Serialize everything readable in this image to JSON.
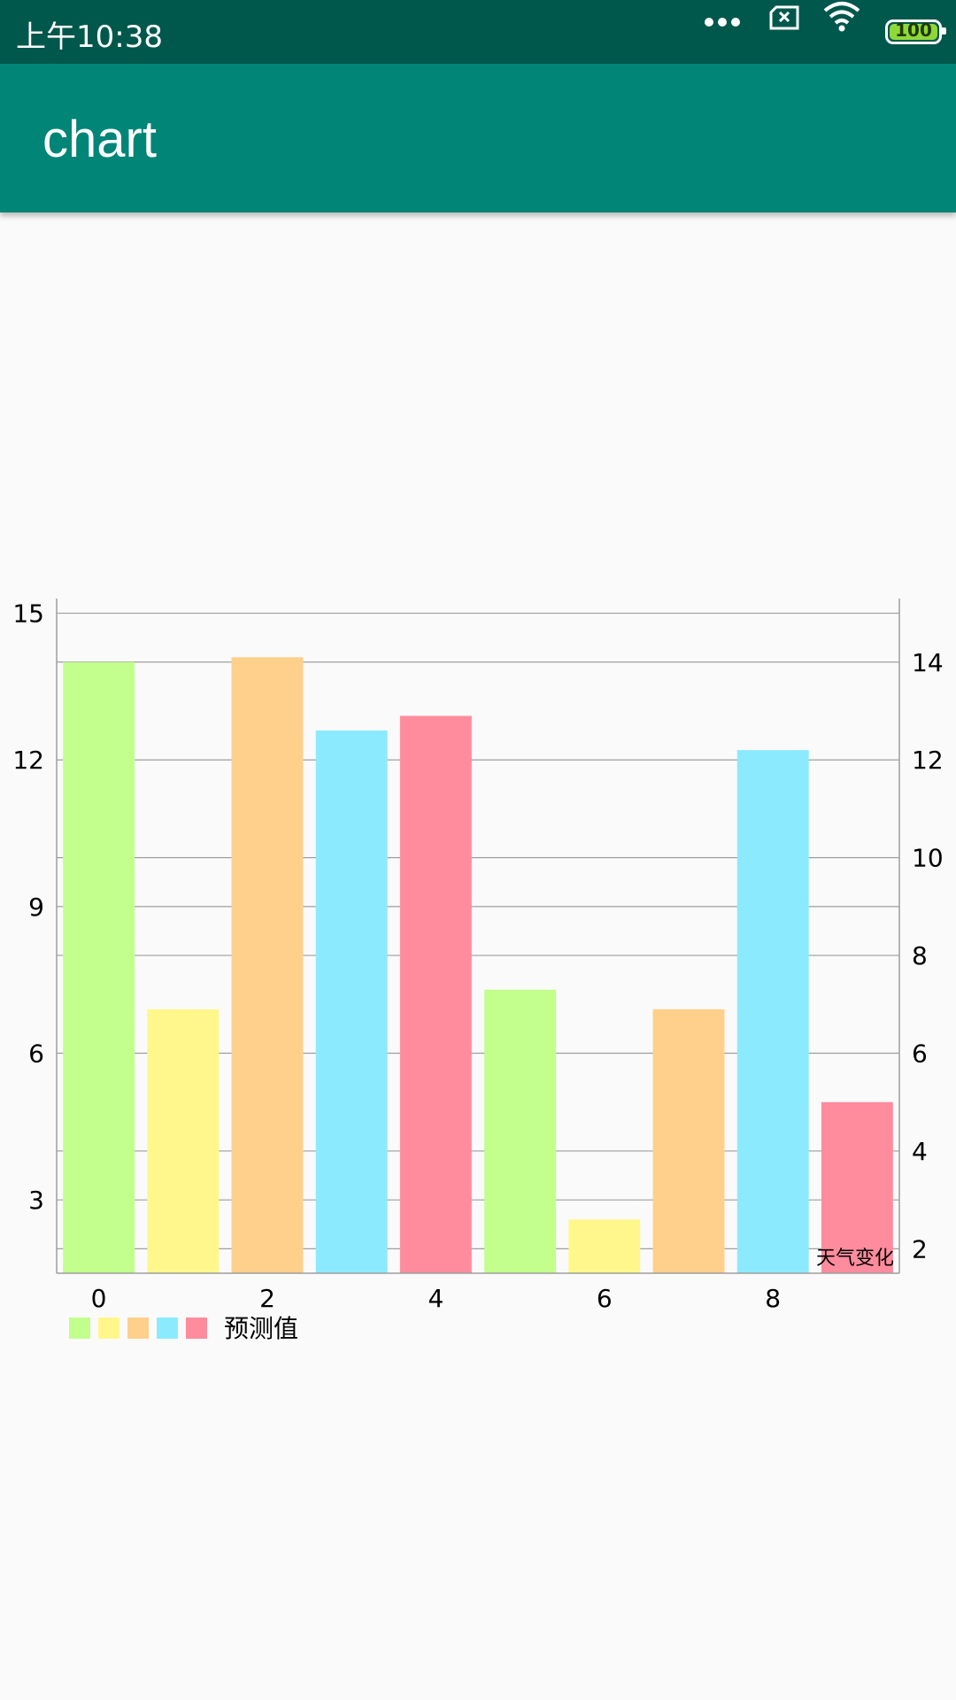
{
  "status_bar": {
    "time": "上午10:38",
    "battery_level": "100",
    "icons": [
      "more-dots-icon",
      "sim-error-icon",
      "wifi-icon",
      "battery-icon"
    ]
  },
  "app_bar": {
    "title": "chart",
    "background": "#008577"
  },
  "chart_data": {
    "type": "bar",
    "description_text": "天气变化",
    "x": [
      0,
      1,
      2,
      3,
      4,
      5,
      6,
      7,
      8,
      9
    ],
    "values": [
      14.0,
      6.9,
      14.1,
      12.6,
      12.9,
      7.3,
      2.6,
      6.9,
      12.2,
      5.0
    ],
    "colors": [
      "#c2ff8c",
      "#fff78c",
      "#ffd08c",
      "#8ceaff",
      "#ff8c9d",
      "#c2ff8c",
      "#fff78c",
      "#ffd08c",
      "#8ceaff",
      "#ff8c9d"
    ],
    "x_tick_labels": [
      "0",
      "2",
      "4",
      "6",
      "8"
    ],
    "x_tick_values": [
      0,
      2,
      4,
      6,
      8
    ],
    "left_axis": {
      "ylim": [
        1.5,
        15.3
      ],
      "ticks": [
        3,
        6,
        9,
        12,
        15
      ]
    },
    "right_axis": {
      "ylim": [
        1.5,
        15.3
      ],
      "ticks": [
        2,
        4,
        6,
        8,
        10,
        12,
        14
      ]
    },
    "grid": true,
    "legend": {
      "position": "bottom-left",
      "label": "预测值",
      "swatches": [
        "#c2ff8c",
        "#fff78c",
        "#ffd08c",
        "#8ceaff",
        "#ff8c9d"
      ]
    }
  }
}
